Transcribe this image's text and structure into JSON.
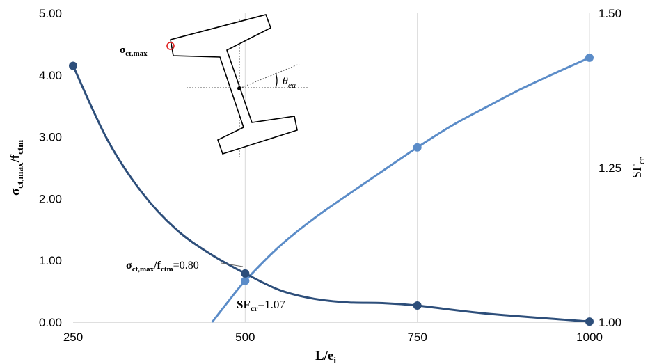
{
  "chart_data": {
    "type": "line",
    "title": "",
    "xlabel": "L/e",
    "xlabel_sub": "i",
    "ylabel_left": {
      "base": "σ",
      "sub": "ct,max",
      "sep": "/f",
      "sub2": "ctm"
    },
    "ylabel_right": {
      "base": "SF",
      "sub": "cr"
    },
    "xlim": [
      250,
      1000
    ],
    "x_ticks": [
      250,
      500,
      750,
      1000
    ],
    "x_tick_labels": [
      "250",
      "500",
      "750",
      "1000"
    ],
    "ylim_left": [
      0,
      5
    ],
    "y_ticks_left": [
      "0.00",
      "1.00",
      "2.00",
      "3.00",
      "4.00",
      "5.00"
    ],
    "ylim_right": [
      1.0,
      1.5
    ],
    "y_ticks_right": [
      "1.00",
      "1.25",
      "1.50"
    ],
    "grid": "vertical",
    "series": [
      {
        "axis": "left",
        "color": "#2d4e7a",
        "markers": [
          [
            250,
            4.15
          ],
          [
            500,
            0.79
          ],
          [
            750,
            0.27
          ],
          [
            1000,
            0.01
          ]
        ],
        "curve": [
          [
            250,
            4.15
          ],
          [
            300,
            2.95
          ],
          [
            350,
            2.1
          ],
          [
            400,
            1.5
          ],
          [
            450,
            1.1
          ],
          [
            500,
            0.79
          ],
          [
            550,
            0.52
          ],
          [
            600,
            0.38
          ],
          [
            650,
            0.32
          ],
          [
            700,
            0.31
          ],
          [
            750,
            0.27
          ],
          [
            850,
            0.14
          ],
          [
            1000,
            0.01
          ]
        ]
      },
      {
        "axis": "right",
        "color": "#5b8cc8",
        "markers": [
          [
            500,
            1.067
          ],
          [
            750,
            1.283
          ],
          [
            1000,
            1.428
          ]
        ],
        "curve": [
          [
            452,
            1.0
          ],
          [
            475,
            1.033
          ],
          [
            500,
            1.067
          ],
          [
            550,
            1.123
          ],
          [
            600,
            1.168
          ],
          [
            650,
            1.207
          ],
          [
            700,
            1.245
          ],
          [
            750,
            1.283
          ],
          [
            800,
            1.318
          ],
          [
            850,
            1.348
          ],
          [
            900,
            1.377
          ],
          [
            950,
            1.403
          ],
          [
            1000,
            1.428
          ]
        ]
      }
    ],
    "annotations": {
      "sigma_label": {
        "base": "σ",
        "sub": "ct,max"
      },
      "ratio_label": {
        "base": "σ",
        "sub": "ct,max",
        "sep": "/f",
        "sub2": "ctm",
        "value": "=0.80"
      },
      "sf_label": {
        "base": "SF",
        "sub": "cr",
        "value": "=1.07"
      },
      "theta_label": {
        "base": "θ",
        "sub": "ea"
      }
    },
    "colors": {
      "dark_series": "#2d4e7a",
      "light_series": "#5b8cc8",
      "grid": "#d9d9d9",
      "marker_ring": "#e02020"
    }
  }
}
